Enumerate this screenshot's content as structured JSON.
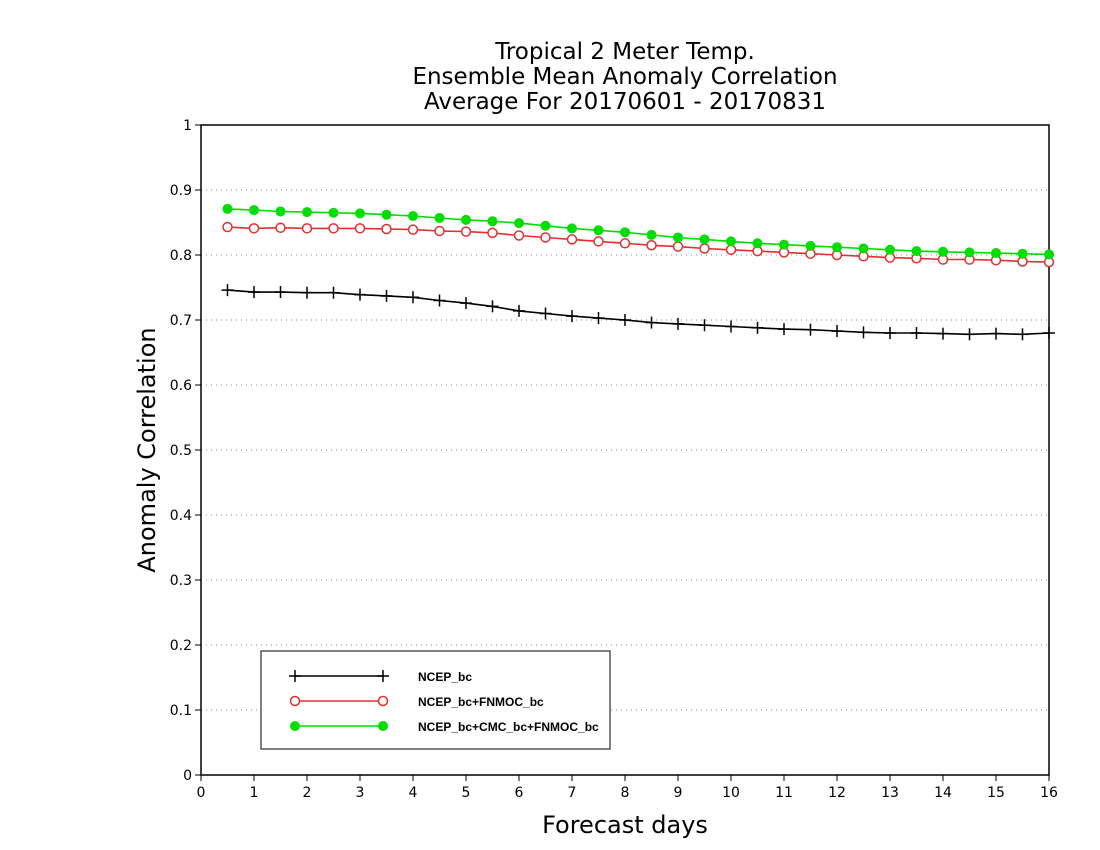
{
  "chart_data": {
    "type": "line",
    "title_lines": [
      "Tropical 2 Meter Temp.",
      "Ensemble Mean Anomaly Correlation",
      "Average For 20170601 - 20170831"
    ],
    "xlabel": "Forecast days",
    "ylabel": "Anomaly Correlation",
    "xlim": [
      0,
      16
    ],
    "ylim": [
      0,
      1
    ],
    "x_ticks": [
      "0",
      "1",
      "2",
      "3",
      "4",
      "5",
      "6",
      "7",
      "8",
      "9",
      "10",
      "11",
      "12",
      "13",
      "14",
      "15",
      "16"
    ],
    "y_ticks": [
      "0",
      "0.1",
      "0.2",
      "0.3",
      "0.4",
      "0.5",
      "0.6",
      "0.7",
      "0.8",
      "0.9",
      "1"
    ],
    "grid": "horizontal-dotted",
    "legend_position": "bottom-left",
    "x": [
      0.5,
      1,
      1.5,
      2,
      2.5,
      3,
      3.5,
      4,
      4.5,
      5,
      5.5,
      6,
      6.5,
      7,
      7.5,
      8,
      8.5,
      9,
      9.5,
      10,
      10.5,
      11,
      11.5,
      12,
      12.5,
      13,
      13.5,
      14,
      14.5,
      15,
      15.5,
      16
    ],
    "series": [
      {
        "name": "NCEP_bc",
        "color": "#000000",
        "marker": "plus",
        "values": [
          0.746,
          0.743,
          0.743,
          0.742,
          0.742,
          0.739,
          0.737,
          0.735,
          0.73,
          0.726,
          0.721,
          0.714,
          0.71,
          0.706,
          0.703,
          0.7,
          0.696,
          0.694,
          0.692,
          0.69,
          0.688,
          0.686,
          0.685,
          0.683,
          0.681,
          0.68,
          0.68,
          0.679,
          0.678,
          0.679,
          0.678,
          0.68
        ]
      },
      {
        "name": "NCEP_bc+FNMOC_bc",
        "color": "#e03030",
        "marker": "open-circle",
        "values": [
          0.843,
          0.841,
          0.842,
          0.841,
          0.841,
          0.841,
          0.84,
          0.839,
          0.837,
          0.836,
          0.834,
          0.83,
          0.827,
          0.824,
          0.821,
          0.818,
          0.815,
          0.813,
          0.81,
          0.808,
          0.806,
          0.804,
          0.802,
          0.8,
          0.798,
          0.796,
          0.795,
          0.793,
          0.793,
          0.792,
          0.79,
          0.789
        ]
      },
      {
        "name": "NCEP_bc+CMC_bc+FNMOC_bc",
        "color": "#00dd00",
        "marker": "filled-circle",
        "values": [
          0.871,
          0.869,
          0.867,
          0.866,
          0.865,
          0.864,
          0.862,
          0.86,
          0.857,
          0.854,
          0.852,
          0.849,
          0.845,
          0.841,
          0.838,
          0.835,
          0.831,
          0.827,
          0.824,
          0.821,
          0.818,
          0.816,
          0.814,
          0.812,
          0.81,
          0.808,
          0.806,
          0.805,
          0.804,
          0.803,
          0.802,
          0.801
        ]
      }
    ]
  }
}
